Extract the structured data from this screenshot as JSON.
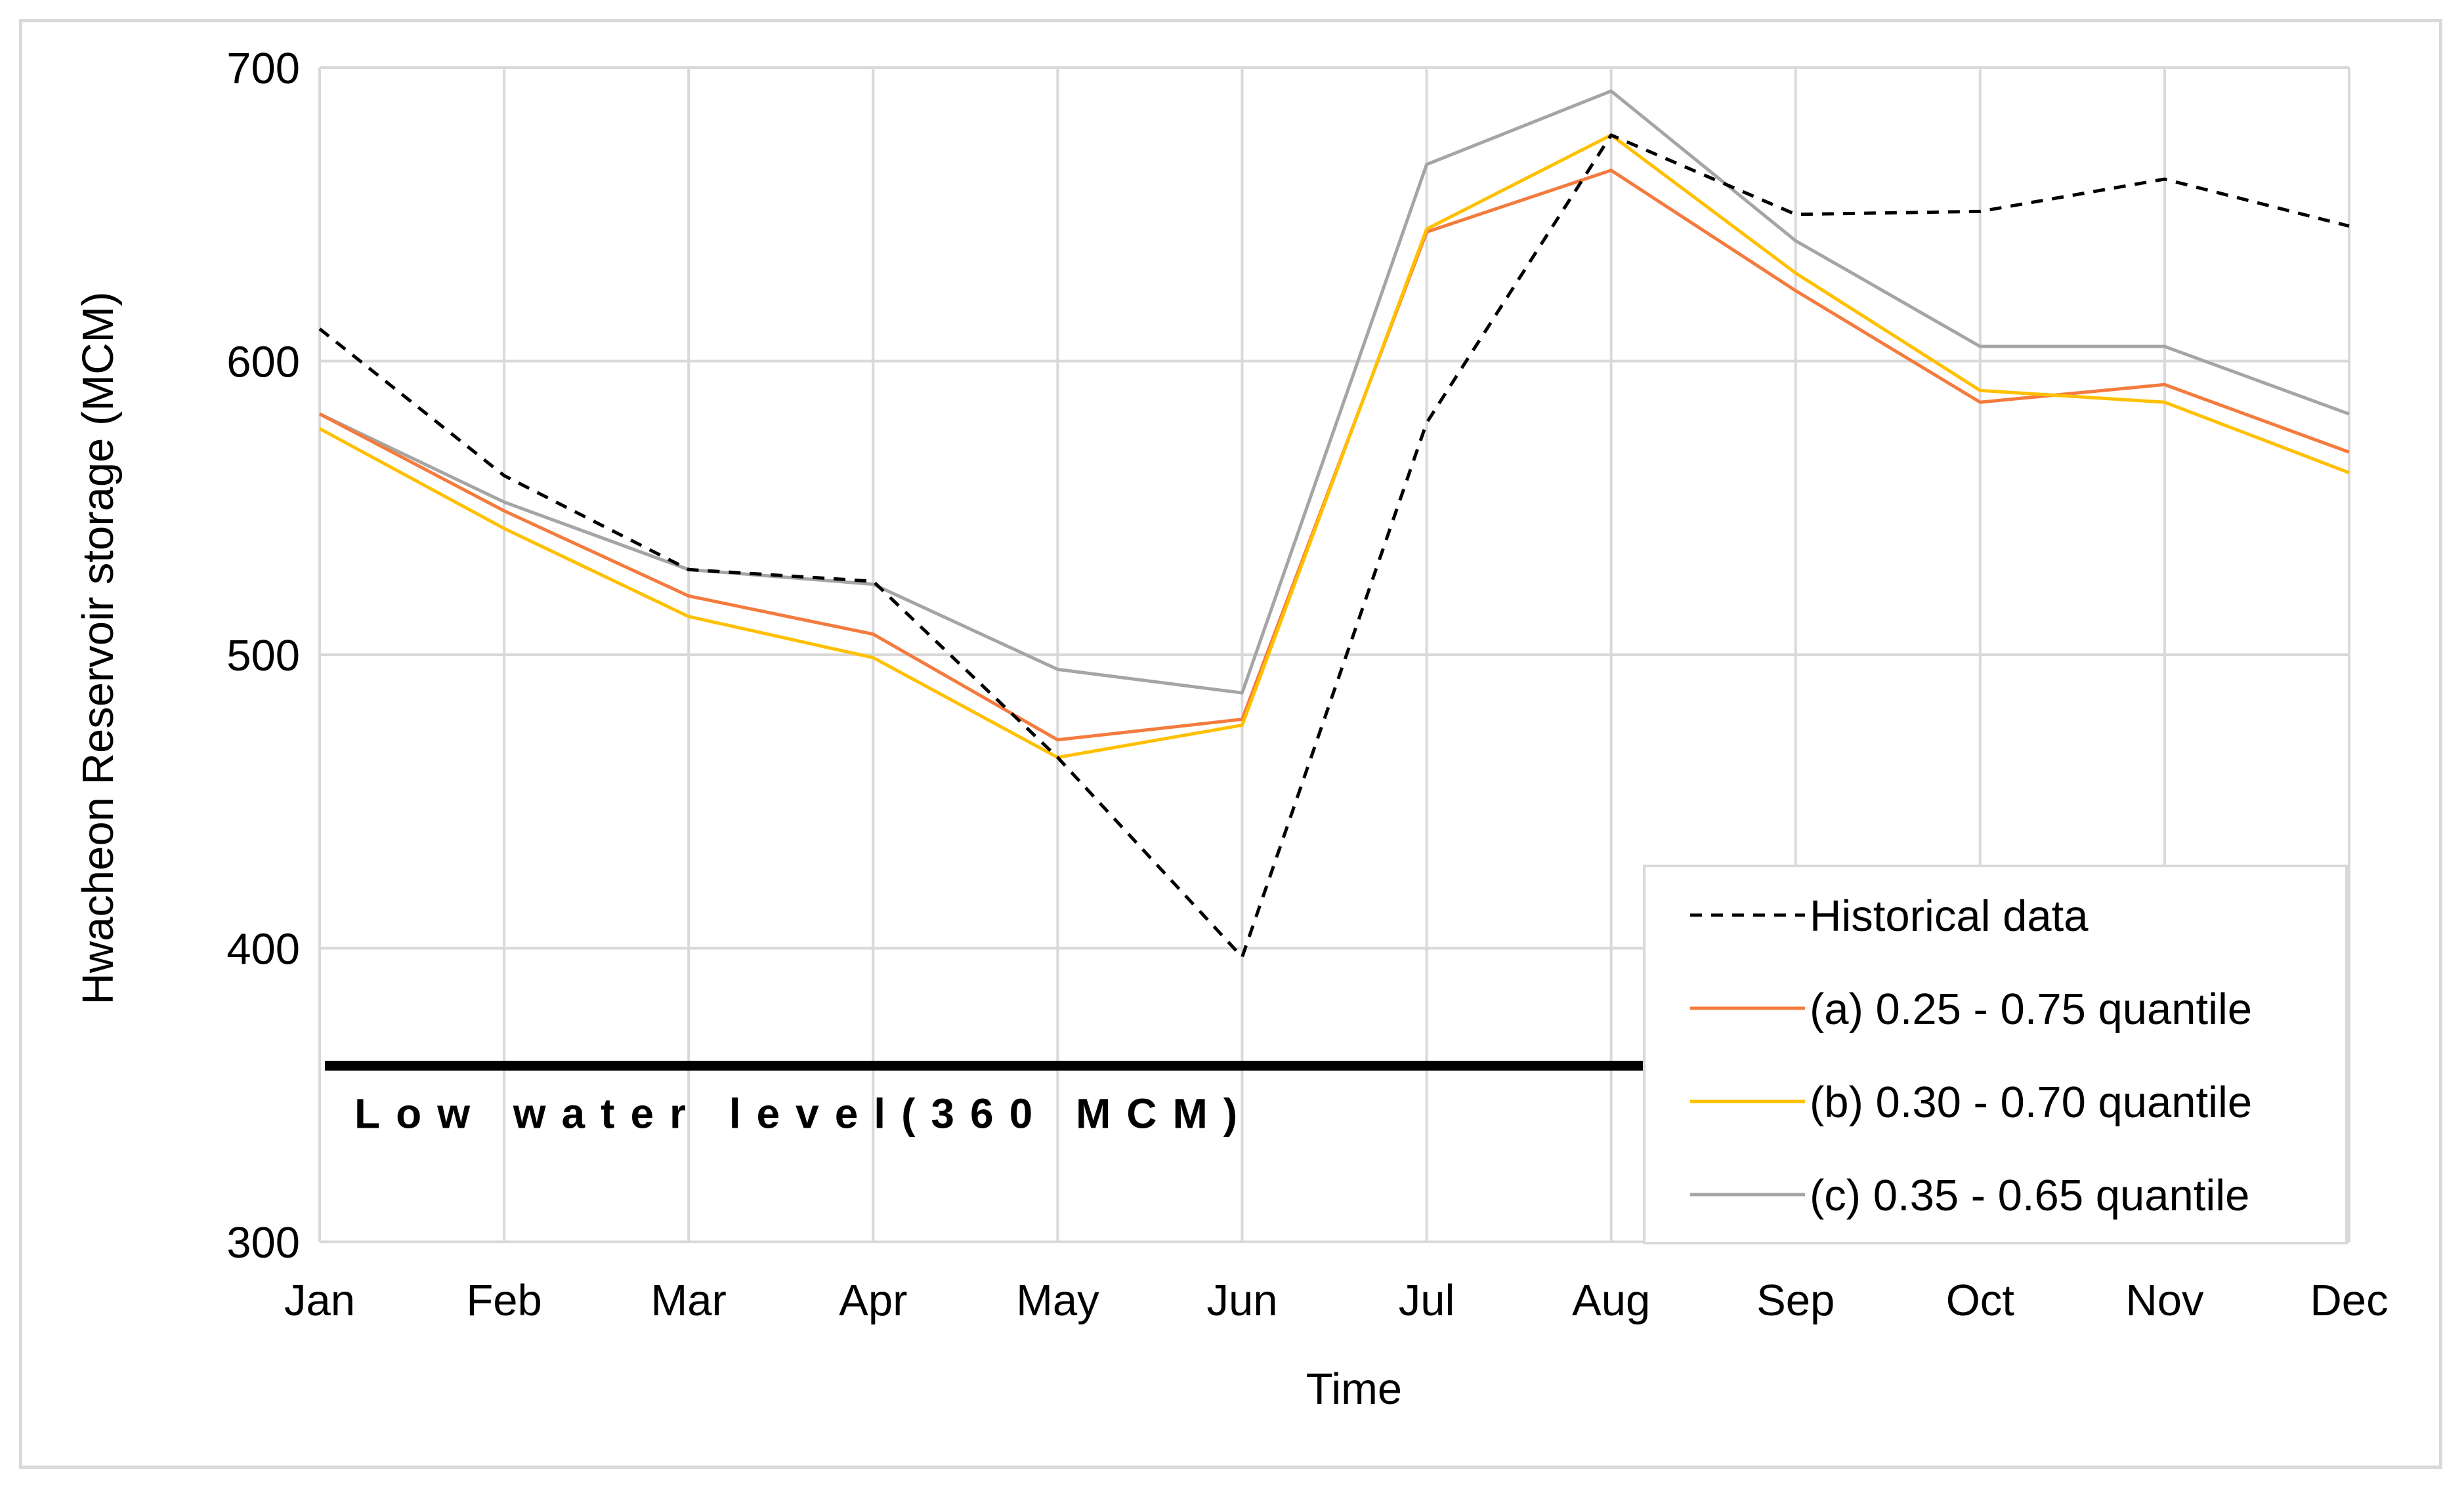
{
  "chart_data": {
    "type": "line",
    "title": "",
    "xlabel": "Time",
    "ylabel": "Hwacheon Reservoir storage (MCM)",
    "ylim": [
      300,
      700
    ],
    "yticks": [
      300,
      400,
      500,
      600,
      700
    ],
    "categories": [
      "Jan",
      "Feb",
      "Mar",
      "Apr",
      "May",
      "Jun",
      "Jul",
      "Aug",
      "Sep",
      "Oct",
      "Nov",
      "Dec"
    ],
    "grid": true,
    "legend_position": "bottom-right",
    "series": [
      {
        "name": "Historical data",
        "color": "#000000",
        "dashed": true,
        "values": [
          611,
          561,
          529,
          525,
          465,
          397,
          579,
          677,
          650,
          651,
          662,
          646
        ]
      },
      {
        "name": "(a) 0.25 - 0.75 quantile",
        "color": "#F47B3E",
        "dashed": false,
        "values": [
          582,
          549,
          520,
          507,
          471,
          478,
          644,
          665,
          624,
          586,
          592,
          569
        ]
      },
      {
        "name": "(b) 0.30 - 0.70 quantile",
        "color": "#FFC000",
        "dashed": false,
        "values": [
          577,
          543,
          513,
          499,
          465,
          476,
          645,
          677,
          630,
          590,
          586,
          562
        ]
      },
      {
        "name": "(c) 0.35 - 0.65 quantile",
        "color": "#A5A5A5",
        "dashed": false,
        "values": [
          582,
          552,
          529,
          524,
          495,
          487,
          667,
          692,
          641,
          605,
          605,
          582
        ]
      }
    ],
    "annotations": [
      {
        "label": "Low water level(360 MCM)",
        "value": 360,
        "color": "#000000"
      }
    ]
  }
}
